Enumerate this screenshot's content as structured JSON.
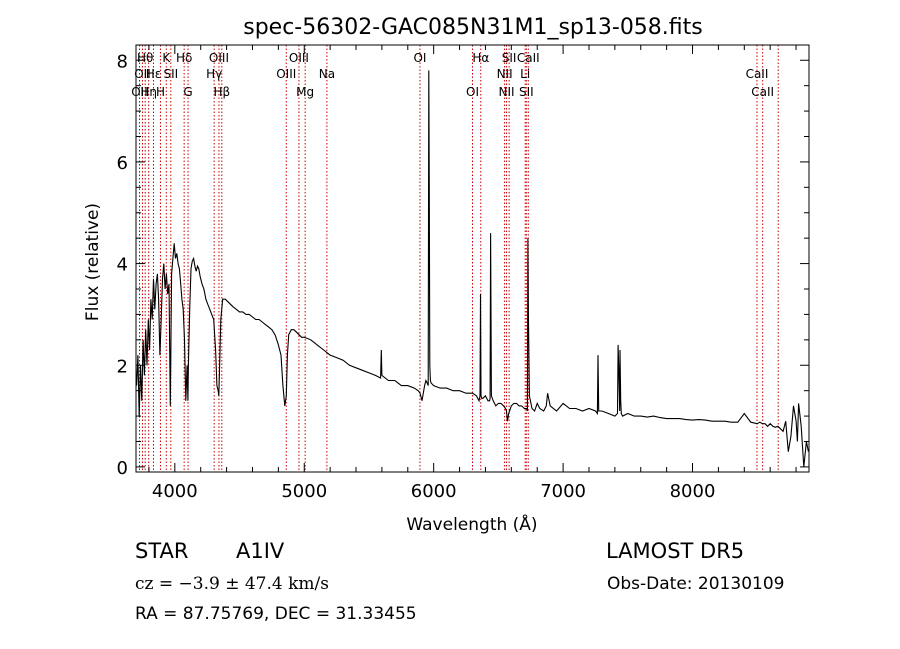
{
  "chart_data": {
    "type": "line",
    "title": "spec-56302-GAC085N31M1_sp13-058.fits",
    "xlabel": "Wavelength (Å)",
    "ylabel": "Flux (relative)",
    "xlim": [
      3700,
      8900
    ],
    "ylim": [
      -0.1,
      8.3
    ],
    "xticks": [
      {
        "value": 4000,
        "label": "4000"
      },
      {
        "value": 5000,
        "label": "5000"
      },
      {
        "value": 6000,
        "label": "6000"
      },
      {
        "value": 7000,
        "label": "7000"
      },
      {
        "value": 8000,
        "label": "8000"
      }
    ],
    "yticks": [
      {
        "value": 0,
        "label": "0"
      },
      {
        "value": 2,
        "label": "2"
      },
      {
        "value": 4,
        "label": "4"
      },
      {
        "value": 6,
        "label": "6"
      },
      {
        "value": 8,
        "label": "8"
      }
    ],
    "grid": false,
    "series": [
      {
        "color": "#000000",
        "x": [
          3705,
          3715,
          3725,
          3735,
          3745,
          3755,
          3765,
          3775,
          3785,
          3795,
          3805,
          3815,
          3825,
          3835,
          3845,
          3855,
          3865,
          3875,
          3885,
          3895,
          3905,
          3915,
          3925,
          3935,
          3945,
          3955,
          3965,
          3975,
          3985,
          3995,
          4005,
          4015,
          4025,
          4035,
          4045,
          4055,
          4065,
          4075,
          4085,
          4095,
          4101,
          4105,
          4115,
          4125,
          4135,
          4145,
          4155,
          4165,
          4175,
          4185,
          4195,
          4210,
          4225,
          4240,
          4255,
          4270,
          4285,
          4300,
          4315,
          4325,
          4335,
          4340,
          4345,
          4355,
          4370,
          4390,
          4410,
          4430,
          4450,
          4475,
          4500,
          4525,
          4550,
          4575,
          4600,
          4625,
          4650,
          4675,
          4700,
          4725,
          4750,
          4775,
          4800,
          4820,
          4835,
          4850,
          4861,
          4870,
          4880,
          4900,
          4920,
          4940,
          4960,
          4980,
          5000,
          5050,
          5100,
          5150,
          5200,
          5250,
          5300,
          5350,
          5400,
          5450,
          5500,
          5550,
          5590,
          5595,
          5600,
          5650,
          5700,
          5750,
          5800,
          5850,
          5880,
          5895,
          5910,
          5920,
          5930,
          5940,
          5950,
          5958,
          5962,
          5966,
          5970,
          5975,
          5980,
          6000,
          6050,
          6100,
          6150,
          6200,
          6250,
          6300,
          6330,
          6350,
          6358,
          6362,
          6366,
          6372,
          6380,
          6400,
          6420,
          6432,
          6436,
          6440,
          6446,
          6460,
          6480,
          6500,
          6520,
          6540,
          6555,
          6563,
          6570,
          6580,
          6600,
          6620,
          6640,
          6660,
          6680,
          6700,
          6716,
          6720,
          6724,
          6728,
          6732,
          6740,
          6760,
          6780,
          6800,
          6820,
          6850,
          6870,
          6880,
          6900,
          6950,
          7000,
          7050,
          7100,
          7150,
          7200,
          7250,
          7265,
          7270,
          7275,
          7300,
          7350,
          7400,
          7420,
          7425,
          7430,
          7437,
          7440,
          7445,
          7450,
          7460,
          7500,
          7550,
          7600,
          7650,
          7700,
          7750,
          7800,
          7850,
          7900,
          7950,
          8000,
          8050,
          8100,
          8150,
          8200,
          8250,
          8300,
          8350,
          8400,
          8450,
          8500,
          8520,
          8540,
          8560,
          8580,
          8600,
          8620,
          8640,
          8660,
          8680,
          8700,
          8720,
          8740,
          8760,
          8780,
          8800,
          8810,
          8820,
          8840,
          8860,
          8880,
          8895
        ],
        "y": [
          1.6,
          2.2,
          1.0,
          2.0,
          1.3,
          2.5,
          1.8,
          2.7,
          2.0,
          2.9,
          2.3,
          3.3,
          2.9,
          3.7,
          3.1,
          3.6,
          3.8,
          3.3,
          2.2,
          2.9,
          3.7,
          4.0,
          3.5,
          3.8,
          3.4,
          3.6,
          1.2,
          3.8,
          4.1,
          4.4,
          4.1,
          4.2,
          4.0,
          3.9,
          3.6,
          3.3,
          3.1,
          2.5,
          1.3,
          2.0,
          1.3,
          2.0,
          3.1,
          3.9,
          4.05,
          4.1,
          3.95,
          3.85,
          3.95,
          3.9,
          3.75,
          3.6,
          3.5,
          3.3,
          3.2,
          3.1,
          3.0,
          2.9,
          2.3,
          1.6,
          1.5,
          1.4,
          1.9,
          2.9,
          3.3,
          3.3,
          3.25,
          3.2,
          3.15,
          3.1,
          3.05,
          3.05,
          3.0,
          3.0,
          2.95,
          2.9,
          2.9,
          2.85,
          2.8,
          2.75,
          2.7,
          2.6,
          2.4,
          2.2,
          1.6,
          1.2,
          1.4,
          2.2,
          2.6,
          2.7,
          2.7,
          2.65,
          2.6,
          2.55,
          2.55,
          2.5,
          2.4,
          2.3,
          2.2,
          2.15,
          2.1,
          2.0,
          1.95,
          1.9,
          1.85,
          1.8,
          1.75,
          2.3,
          1.8,
          1.7,
          1.7,
          1.6,
          1.6,
          1.55,
          1.5,
          1.45,
          1.3,
          1.45,
          1.6,
          1.7,
          1.65,
          1.6,
          7.8,
          5.3,
          2.0,
          1.7,
          1.65,
          1.6,
          1.55,
          1.55,
          1.5,
          1.5,
          1.45,
          1.45,
          1.4,
          1.3,
          1.4,
          3.4,
          1.4,
          1.35,
          1.35,
          1.4,
          1.3,
          1.3,
          1.35,
          4.6,
          1.4,
          1.3,
          1.2,
          1.25,
          1.25,
          1.2,
          1.15,
          1.1,
          0.9,
          1.05,
          1.2,
          1.25,
          1.25,
          1.2,
          1.2,
          1.15,
          1.15,
          1.15,
          1.1,
          4.5,
          3.0,
          1.4,
          1.15,
          1.1,
          1.25,
          1.15,
          1.1,
          1.2,
          1.45,
          1.2,
          1.1,
          1.25,
          1.15,
          1.15,
          1.1,
          1.15,
          1.1,
          1.05,
          2.2,
          1.1,
          1.1,
          1.05,
          1.0,
          1.05,
          2.4,
          2.0,
          1.1,
          2.3,
          1.3,
          1.05,
          1.0,
          1.05,
          1.0,
          1.0,
          0.98,
          1.0,
          0.97,
          0.95,
          0.95,
          0.95,
          0.93,
          0.92,
          0.93,
          0.92,
          0.9,
          0.9,
          0.9,
          0.88,
          0.88,
          1.05,
          0.88,
          0.85,
          0.88,
          0.85,
          0.85,
          0.8,
          0.85,
          0.8,
          0.78,
          0.8,
          0.75,
          0.7,
          0.9,
          0.3,
          0.6,
          1.2,
          0.9,
          0.5,
          1.25,
          0.8,
          0.0,
          0.5,
          0.3
        ]
      }
    ],
    "lines": [
      {
        "wavelength": 3727,
        "label": "OII",
        "row": 2
      },
      {
        "wavelength": 3750,
        "label": "OII",
        "row": 1
      },
      {
        "wavelength": 3771,
        "label": "Hθ",
        "row": 0
      },
      {
        "wavelength": 3798,
        "label": "Hη",
        "row": 2
      },
      {
        "wavelength": 3835,
        "label": "Hε",
        "row": 1
      },
      {
        "wavelength": 3889,
        "label": "H",
        "row": 2
      },
      {
        "wavelength": 3934,
        "label": "K",
        "row": 0
      },
      {
        "wavelength": 3969,
        "label": "SII",
        "row": 1
      },
      {
        "wavelength": 4072,
        "label": "Hδ",
        "row": 0
      },
      {
        "wavelength": 4102,
        "label": "G",
        "row": 2
      },
      {
        "wavelength": 4304,
        "label": "Hγ",
        "row": 1
      },
      {
        "wavelength": 4341,
        "label": "OIII",
        "row": 0
      },
      {
        "wavelength": 4363,
        "label": "Hβ",
        "row": 2
      },
      {
        "wavelength": 4861,
        "label": "OIII",
        "row": 1
      },
      {
        "wavelength": 4959,
        "label": "OIII",
        "row": 0
      },
      {
        "wavelength": 5007,
        "label": "Mg",
        "row": 2
      },
      {
        "wavelength": 5175,
        "label": "Na",
        "row": 1
      },
      {
        "wavelength": 5894,
        "label": "OI",
        "row": 0
      },
      {
        "wavelength": 6300,
        "label": "OI",
        "row": 2
      },
      {
        "wavelength": 6364,
        "label": "Hα",
        "row": 0
      },
      {
        "wavelength": 6548,
        "label": "NII",
        "row": 1
      },
      {
        "wavelength": 6563,
        "label": "NII",
        "row": 2
      },
      {
        "wavelength": 6583,
        "label": "SII",
        "row": 0
      },
      {
        "wavelength": 6707,
        "label": "Li",
        "row": 1
      },
      {
        "wavelength": 6716,
        "label": "SII",
        "row": 2
      },
      {
        "wavelength": 6731,
        "label": "CaII",
        "row": 0
      },
      {
        "wavelength": 8498,
        "label": "CaII",
        "row": 1
      },
      {
        "wavelength": 8542,
        "label": "CaII",
        "row": 2
      },
      {
        "wavelength": 8662,
        "label": "",
        "row": 0
      }
    ],
    "line_color": "#cc0000"
  },
  "info": {
    "class": "STAR",
    "subclass": "A1IV",
    "survey": "LAMOST DR5",
    "cz": "cz = −3.9 ± 47.4 km/s",
    "obs_date": "Obs-Date: 20130109",
    "radec": "RA =  87.75769, DEC =  31.33455"
  }
}
